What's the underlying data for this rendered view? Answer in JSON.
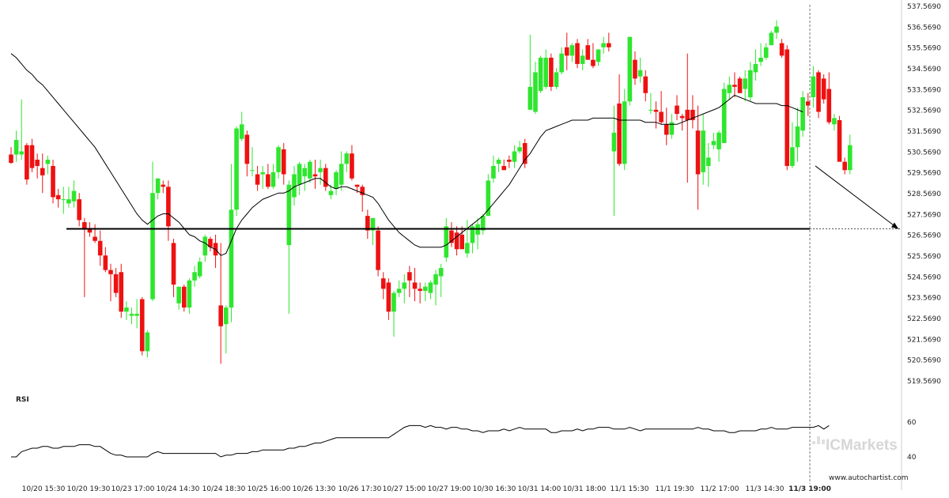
{
  "chart_data": {
    "type": "candlestick",
    "y_ticks": [
      "537.5690",
      "536.5690",
      "535.5690",
      "534.5690",
      "533.5690",
      "532.5690",
      "531.5690",
      "530.5690",
      "529.5690",
      "528.5690",
      "527.5690",
      "526.5690",
      "525.5690",
      "524.5690",
      "523.5690",
      "522.5690",
      "521.5690",
      "520.5690",
      "519.5690"
    ],
    "y_range": [
      519.569,
      537.569
    ],
    "x_ticks": [
      "10/20 15:30",
      "10/20 19:30",
      "10/23 17:00",
      "10/24 14:30",
      "10/24 18:30",
      "10/25 16:00",
      "10/26 13:30",
      "10/26 17:30",
      "10/27 15:00",
      "10/27 19:00",
      "10/30 16:30",
      "10/31 14:00",
      "10/31 18:00",
      "11/1 15:30",
      "11/1 19:30",
      "11/2 17:00",
      "11/3 14:30",
      "11/3 19:00"
    ],
    "support_level": 526.88,
    "projection": {
      "from_price": 529.9,
      "to_price": 526.88
    },
    "candles": [
      [
        530.45,
        530.8,
        530.0,
        530.05
      ],
      [
        530.45,
        531.6,
        530.1,
        531.15
      ],
      [
        530.45,
        533.1,
        530.2,
        530.6
      ],
      [
        530.9,
        531.0,
        529.0,
        529.25
      ],
      [
        530.9,
        531.2,
        529.6,
        529.8
      ],
      [
        530.2,
        530.5,
        529.3,
        529.9
      ],
      [
        529.8,
        530.5,
        528.6,
        529.45
      ],
      [
        530.0,
        530.4,
        529.5,
        530.2
      ],
      [
        529.9,
        530.2,
        528.1,
        528.4
      ],
      [
        528.5,
        528.8,
        527.9,
        528.3
      ],
      [
        528.3,
        528.9,
        527.6,
        528.3
      ],
      [
        528.1,
        528.9,
        527.9,
        528.3
      ],
      [
        528.2,
        529.2,
        527.9,
        528.7
      ],
      [
        528.3,
        528.6,
        527.0,
        527.3
      ],
      [
        527.2,
        527.4,
        523.6,
        526.9
      ],
      [
        526.9,
        527.2,
        526.5,
        526.7
      ],
      [
        526.5,
        527.1,
        526.2,
        526.3
      ],
      [
        526.3,
        526.8,
        525.1,
        525.6
      ],
      [
        525.6,
        526.0,
        524.8,
        524.9
      ],
      [
        524.9,
        525.2,
        523.4,
        524.7
      ],
      [
        524.7,
        525.0,
        523.6,
        523.8
      ],
      [
        524.8,
        525.2,
        522.6,
        522.9
      ],
      [
        522.9,
        523.4,
        522.5,
        523.1
      ],
      [
        522.7,
        523.1,
        522.3,
        522.8
      ],
      [
        522.7,
        523.5,
        522.1,
        522.8
      ],
      [
        523.5,
        523.6,
        520.8,
        521.0
      ],
      [
        521.0,
        522.0,
        520.7,
        521.9
      ],
      [
        523.5,
        530.1,
        523.4,
        528.6
      ],
      [
        528.6,
        529.3,
        528.3,
        529.3
      ],
      [
        529.0,
        529.2,
        528.6,
        528.9
      ],
      [
        528.9,
        529.2,
        526.3,
        527.0
      ],
      [
        526.2,
        526.4,
        523.6,
        524.2
      ],
      [
        523.3,
        524.1,
        523.0,
        524.1
      ],
      [
        524.1,
        524.2,
        522.9,
        523.1
      ],
      [
        523.1,
        524.5,
        522.8,
        524.4
      ],
      [
        524.4,
        525.1,
        524.1,
        524.8
      ],
      [
        524.6,
        525.5,
        524.5,
        525.3
      ],
      [
        525.6,
        526.6,
        525.3,
        526.5
      ],
      [
        526.4,
        526.5,
        525.8,
        526.0
      ],
      [
        526.2,
        526.6,
        525.0,
        525.6
      ],
      [
        523.2,
        526.2,
        520.4,
        522.2
      ],
      [
        522.3,
        523.2,
        520.9,
        523.1
      ],
      [
        523.1,
        530.0,
        522.4,
        527.8
      ],
      [
        527.8,
        531.8,
        527.5,
        531.7
      ],
      [
        531.2,
        532.5,
        531.1,
        531.9
      ],
      [
        531.4,
        531.6,
        529.4,
        530.0
      ],
      [
        529.7,
        530.8,
        529.4,
        529.7
      ],
      [
        529.5,
        529.9,
        528.7,
        529.0
      ],
      [
        529.5,
        529.9,
        528.8,
        529.6
      ],
      [
        529.5,
        530.0,
        528.8,
        528.9
      ],
      [
        528.9,
        530.0,
        528.8,
        529.6
      ],
      [
        529.6,
        530.9,
        529.3,
        530.8
      ],
      [
        530.7,
        531.0,
        529.0,
        529.5
      ],
      [
        526.1,
        529.2,
        522.8,
        529.0
      ],
      [
        528.4,
        529.9,
        528.0,
        529.5
      ],
      [
        529.0,
        530.1,
        528.5,
        530.0
      ],
      [
        529.4,
        530.0,
        528.7,
        529.8
      ],
      [
        529.3,
        530.2,
        529.1,
        530.1
      ],
      [
        529.5,
        530.2,
        528.8,
        529.4
      ],
      [
        529.6,
        530.2,
        529.0,
        529.8
      ],
      [
        529.8,
        530.0,
        528.7,
        528.9
      ],
      [
        528.5,
        529.0,
        528.3,
        528.7
      ],
      [
        528.8,
        529.7,
        528.5,
        529.6
      ],
      [
        529.0,
        530.6,
        528.7,
        530.0
      ],
      [
        530.0,
        530.6,
        529.6,
        530.5
      ],
      [
        530.5,
        530.9,
        529.2,
        529.3
      ],
      [
        529.0,
        529.0,
        528.6,
        528.9
      ],
      [
        528.9,
        529.0,
        527.7,
        528.5
      ],
      [
        527.5,
        527.8,
        526.4,
        526.8
      ],
      [
        526.8,
        527.4,
        526.1,
        527.4
      ],
      [
        526.8,
        527.0,
        524.6,
        524.9
      ],
      [
        524.5,
        524.8,
        523.5,
        524.0
      ],
      [
        524.3,
        524.5,
        522.5,
        522.9
      ],
      [
        522.9,
        523.9,
        521.7,
        523.8
      ],
      [
        523.8,
        524.4,
        523.6,
        524.0
      ],
      [
        524.0,
        524.7,
        523.3,
        524.3
      ],
      [
        524.8,
        525.1,
        523.6,
        524.4
      ],
      [
        524.3,
        525.0,
        523.4,
        524.0
      ],
      [
        524.0,
        524.3,
        523.3,
        523.9
      ],
      [
        523.9,
        524.3,
        523.4,
        524.1
      ],
      [
        523.8,
        524.4,
        523.5,
        524.3
      ],
      [
        524.2,
        524.9,
        523.2,
        524.7
      ],
      [
        524.6,
        525.2,
        523.6,
        525.0
      ],
      [
        525.5,
        527.4,
        525.3,
        527.0
      ],
      [
        526.8,
        527.2,
        526.0,
        526.2
      ],
      [
        526.7,
        527.0,
        525.6,
        525.9
      ],
      [
        526.6,
        527.0,
        526.0,
        525.9
      ],
      [
        525.7,
        527.3,
        525.5,
        526.2
      ],
      [
        526.2,
        527.1,
        525.7,
        527.0
      ],
      [
        526.6,
        527.4,
        525.9,
        527.1
      ],
      [
        526.8,
        527.6,
        526.6,
        527.5
      ],
      [
        527.5,
        529.5,
        527.5,
        529.2
      ],
      [
        529.3,
        530.4,
        529.1,
        529.9
      ],
      [
        530.0,
        530.3,
        529.6,
        530.2
      ],
      [
        529.9,
        530.2,
        529.8,
        529.7
      ],
      [
        530.2,
        530.4,
        529.8,
        530.1
      ],
      [
        530.1,
        530.9,
        529.8,
        530.6
      ],
      [
        530.6,
        531.1,
        530.5,
        530.8
      ],
      [
        531.0,
        531.2,
        529.8,
        530.0
      ],
      [
        532.6,
        536.2,
        532.6,
        533.7
      ],
      [
        532.5,
        534.9,
        532.4,
        534.4
      ],
      [
        533.5,
        535.2,
        533.4,
        535.1
      ],
      [
        533.7,
        535.5,
        533.6,
        535.1
      ],
      [
        535.1,
        535.3,
        533.5,
        533.7
      ],
      [
        533.7,
        534.6,
        533.6,
        534.4
      ],
      [
        534.4,
        535.6,
        534.3,
        535.3
      ],
      [
        535.6,
        536.3,
        534.5,
        535.2
      ],
      [
        535.2,
        535.8,
        534.9,
        535.7
      ],
      [
        535.8,
        536.0,
        534.6,
        534.8
      ],
      [
        534.8,
        535.5,
        534.5,
        535.2
      ],
      [
        535.7,
        536.0,
        535.0,
        535.0
      ],
      [
        535.0,
        535.8,
        534.6,
        534.7
      ],
      [
        534.9,
        535.5,
        534.7,
        535.5
      ],
      [
        535.6,
        536.1,
        535.3,
        535.8
      ],
      [
        535.8,
        536.3,
        535.4,
        535.6
      ],
      [
        530.6,
        532.8,
        527.5,
        531.5
      ],
      [
        532.9,
        534.3,
        529.9,
        530.0
      ],
      [
        530.0,
        533.6,
        529.7,
        533.0
      ],
      [
        533.0,
        536.1,
        532.8,
        536.1
      ],
      [
        535.0,
        535.4,
        533.8,
        534.1
      ],
      [
        534.2,
        535.1,
        533.9,
        534.5
      ],
      [
        534.2,
        534.5,
        533.0,
        533.4
      ],
      [
        532.6,
        533.4,
        532.4,
        532.6
      ],
      [
        532.6,
        533.0,
        531.7,
        532.5
      ],
      [
        532.5,
        533.5,
        531.9,
        532.0
      ],
      [
        531.9,
        532.7,
        530.9,
        531.4
      ],
      [
        531.4,
        532.4,
        531.2,
        532.0
      ],
      [
        532.8,
        533.3,
        532.1,
        532.4
      ],
      [
        532.3,
        532.4,
        531.6,
        532.2
      ],
      [
        532.6,
        535.3,
        529.1,
        532.1
      ],
      [
        532.6,
        533.3,
        531.7,
        532.1
      ],
      [
        531.6,
        532.8,
        527.8,
        529.5
      ],
      [
        529.6,
        532.4,
        529.0,
        531.6
      ],
      [
        529.9,
        531.0,
        528.9,
        530.3
      ],
      [
        530.9,
        531.5,
        530.7,
        531.1
      ],
      [
        530.7,
        531.6,
        530.1,
        531.5
      ],
      [
        531.0,
        533.9,
        531.0,
        533.6
      ],
      [
        533.4,
        534.2,
        533.1,
        533.8
      ],
      [
        533.8,
        534.4,
        533.2,
        533.7
      ],
      [
        534.1,
        534.2,
        533.4,
        533.4
      ],
      [
        533.6,
        534.5,
        533.0,
        534.1
      ],
      [
        533.2,
        534.9,
        533.0,
        534.5
      ],
      [
        534.4,
        535.5,
        534.0,
        534.8
      ],
      [
        534.9,
        535.8,
        534.7,
        535.1
      ],
      [
        535.1,
        535.8,
        535.0,
        535.6
      ],
      [
        535.7,
        536.4,
        535.7,
        536.3
      ],
      [
        536.3,
        536.9,
        536.0,
        536.6
      ],
      [
        535.8,
        536.0,
        535.1,
        535.2
      ],
      [
        535.5,
        535.7,
        529.7,
        529.9
      ],
      [
        529.9,
        532.0,
        529.8,
        530.8
      ],
      [
        530.8,
        532.7,
        530.1,
        531.8
      ],
      [
        531.6,
        533.5,
        531.3,
        533.2
      ],
      [
        533.0,
        533.4,
        532.3,
        532.8
      ],
      [
        533.2,
        534.7,
        532.7,
        534.2
      ],
      [
        534.4,
        534.5,
        532.2,
        532.5
      ],
      [
        534.1,
        534.3,
        532.9,
        533.1
      ],
      [
        533.6,
        534.4,
        531.9,
        532.0
      ],
      [
        531.9,
        532.4,
        531.6,
        532.2
      ],
      [
        532.1,
        532.3,
        530.2,
        530.1
      ],
      [
        530.1,
        530.3,
        529.5,
        529.7
      ],
      [
        529.7,
        531.4,
        529.5,
        530.9
      ]
    ],
    "ma": [
      535.3,
      535.1,
      534.8,
      534.5,
      534.3,
      534.0,
      533.8,
      533.5,
      533.2,
      532.9,
      532.6,
      532.3,
      532.0,
      531.7,
      531.4,
      531.1,
      530.8,
      530.4,
      530.0,
      529.6,
      529.2,
      528.8,
      528.4,
      528.0,
      527.6,
      527.3,
      527.1,
      527.3,
      527.5,
      527.6,
      527.6,
      527.4,
      527.2,
      526.9,
      526.6,
      526.5,
      526.3,
      526.2,
      526.0,
      525.9,
      525.6,
      525.7,
      526.3,
      526.9,
      527.3,
      527.6,
      527.9,
      528.1,
      528.3,
      528.4,
      528.5,
      528.6,
      528.6,
      528.7,
      528.9,
      529.0,
      529.1,
      529.2,
      529.3,
      529.3,
      529.1,
      528.9,
      528.8,
      528.9,
      528.9,
      528.8,
      528.7,
      528.6,
      528.5,
      528.4,
      528.1,
      527.7,
      527.3,
      527.0,
      526.7,
      526.5,
      526.3,
      526.1,
      526.0,
      526.0,
      526.0,
      526.0,
      526.0,
      526.1,
      526.3,
      526.5,
      526.7,
      526.9,
      527.1,
      527.3,
      527.5,
      527.8,
      528.1,
      528.4,
      528.7,
      529.0,
      529.4,
      529.8,
      530.2,
      530.5,
      530.9,
      531.3,
      531.6,
      531.7,
      531.8,
      531.9,
      532.0,
      532.1,
      532.1,
      532.1,
      532.1,
      532.2,
      532.2,
      532.2,
      532.2,
      532.2,
      532.1,
      532.1,
      532.1,
      532.1,
      532.1,
      532.0,
      532.0,
      532.0,
      531.9,
      531.9,
      531.9,
      531.9,
      532.0,
      532.1,
      532.2,
      532.3,
      532.4,
      532.5,
      532.6,
      532.7,
      532.9,
      533.1,
      533.3,
      533.2,
      533.1,
      533.0,
      532.9,
      532.9,
      532.9,
      532.9,
      532.9,
      532.8,
      532.8,
      532.7,
      532.6,
      532.5
    ],
    "rsi": {
      "label": "RSI",
      "ticks": [
        "60",
        "40"
      ],
      "values": [
        40,
        40,
        43,
        44,
        45,
        45,
        46,
        46,
        45,
        45,
        46,
        46,
        46,
        47,
        47,
        47,
        46,
        46,
        44,
        42,
        41,
        41,
        40,
        40,
        40,
        40,
        40,
        42,
        43,
        42,
        42,
        42,
        42,
        42,
        42,
        42,
        42,
        42,
        42,
        42,
        40,
        41,
        41,
        42,
        42,
        42,
        43,
        43,
        44,
        44,
        44,
        44,
        44,
        45,
        45,
        46,
        46,
        47,
        48,
        48,
        49,
        50,
        51,
        51,
        51,
        51,
        51,
        51,
        51,
        51,
        51,
        51,
        51,
        53,
        55,
        57,
        58,
        58,
        58,
        57,
        58,
        57,
        57,
        56,
        57,
        57,
        56,
        56,
        55,
        55,
        54,
        55,
        55,
        55,
        56,
        55,
        56,
        57,
        56,
        56,
        56,
        56,
        56,
        54,
        54,
        55,
        55,
        55,
        56,
        55,
        56,
        56,
        57,
        57,
        57,
        56,
        56,
        56,
        57,
        56,
        55,
        56,
        56,
        56,
        56,
        56,
        56,
        56,
        56,
        56,
        56,
        57,
        56,
        56,
        55,
        55,
        55,
        54,
        54,
        55,
        55,
        55,
        55,
        56,
        56,
        57,
        56,
        56,
        56,
        57,
        57,
        57,
        57,
        57,
        58,
        56,
        58
      ]
    }
  },
  "watermark": {
    "brand": "ICMarkets",
    "site": "www.autochartist.com"
  },
  "colors": {
    "up": "#2ee62e",
    "down": "#ee1111",
    "ma": "#000000",
    "support": "#000000"
  }
}
